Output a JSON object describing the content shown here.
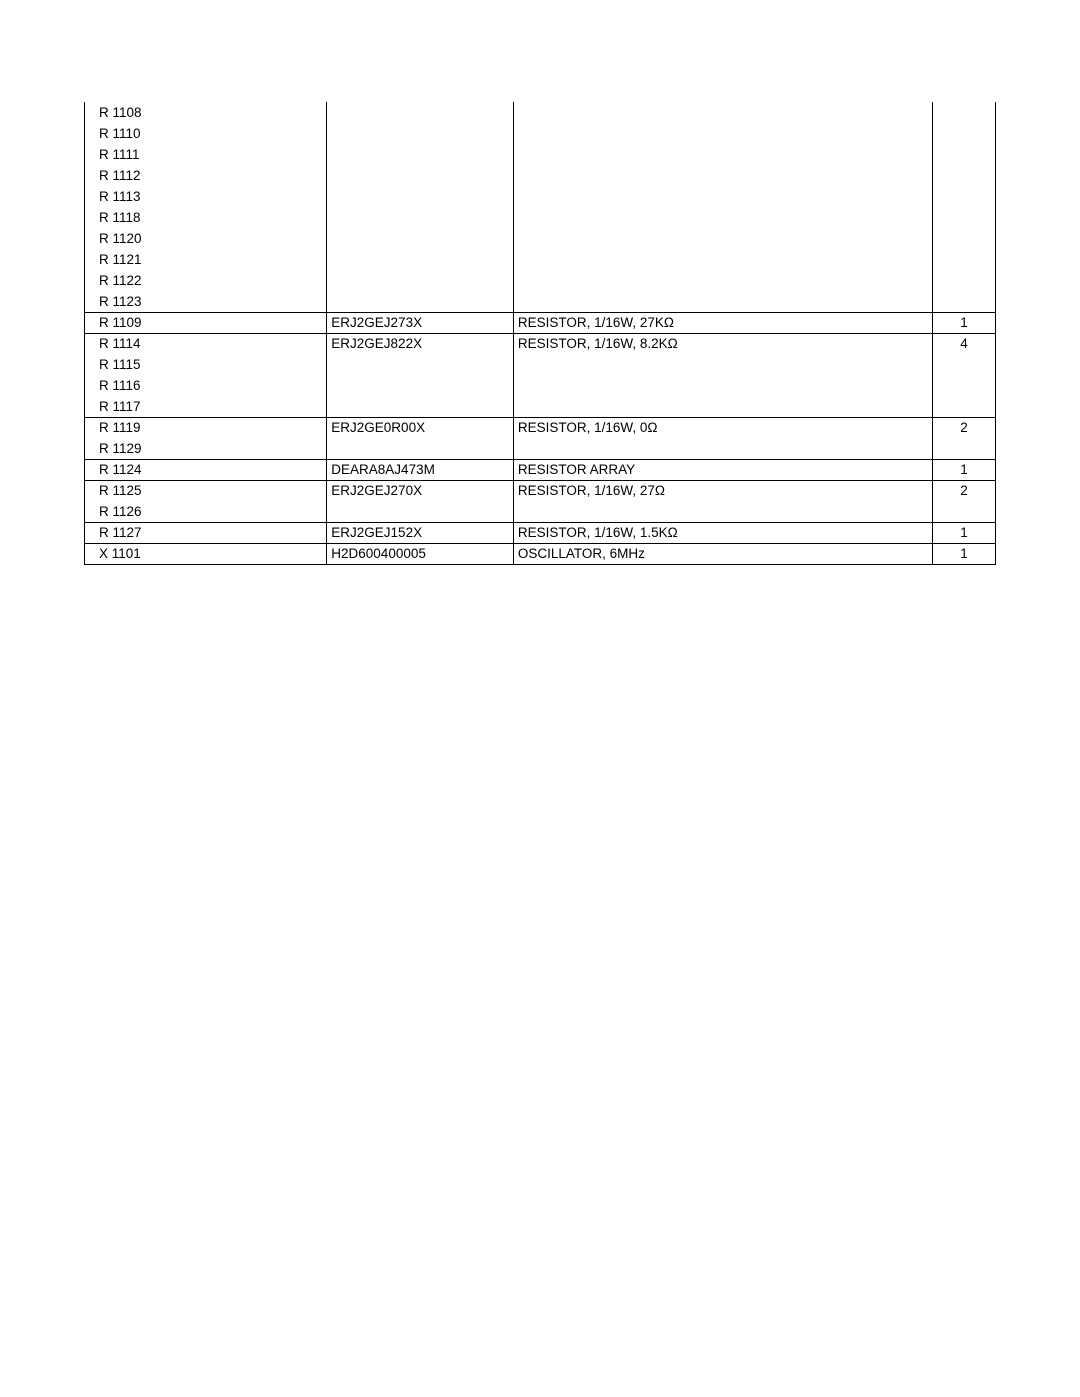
{
  "rows": [
    {
      "ref": "R 1108",
      "part": "",
      "desc": "",
      "qty": "",
      "group_start": false
    },
    {
      "ref": "R 1110",
      "part": "",
      "desc": "",
      "qty": "",
      "group_start": false
    },
    {
      "ref": "R 1111",
      "part": "",
      "desc": "",
      "qty": "",
      "group_start": false
    },
    {
      "ref": "R 1112",
      "part": "",
      "desc": "",
      "qty": "",
      "group_start": false
    },
    {
      "ref": "R 1113",
      "part": "",
      "desc": "",
      "qty": "",
      "group_start": false
    },
    {
      "ref": "R 1118",
      "part": "",
      "desc": "",
      "qty": "",
      "group_start": false
    },
    {
      "ref": "R 1120",
      "part": "",
      "desc": "",
      "qty": "",
      "group_start": false
    },
    {
      "ref": "R 1121",
      "part": "",
      "desc": "",
      "qty": "",
      "group_start": false
    },
    {
      "ref": "R 1122",
      "part": "",
      "desc": "",
      "qty": "",
      "group_start": false
    },
    {
      "ref": "R 1123",
      "part": "",
      "desc": "",
      "qty": "",
      "group_start": false
    },
    {
      "ref": "R 1109",
      "part": "ERJ2GEJ273X",
      "desc": "RESISTOR, 1/16W, 27KΩ",
      "qty": "1",
      "group_start": true
    },
    {
      "ref": "R 1114",
      "part": "ERJ2GEJ822X",
      "desc": "RESISTOR, 1/16W, 8.2KΩ",
      "qty": "4",
      "group_start": true
    },
    {
      "ref": "R 1115",
      "part": "",
      "desc": "",
      "qty": "",
      "group_start": false
    },
    {
      "ref": "R 1116",
      "part": "",
      "desc": "",
      "qty": "",
      "group_start": false
    },
    {
      "ref": "R 1117",
      "part": "",
      "desc": "",
      "qty": "",
      "group_start": false
    },
    {
      "ref": "R 1119",
      "part": "ERJ2GE0R00X",
      "desc": "RESISTOR, 1/16W, 0Ω",
      "qty": "2",
      "group_start": true
    },
    {
      "ref": "R 1129",
      "part": "",
      "desc": "",
      "qty": "",
      "group_start": false
    },
    {
      "ref": "R 1124",
      "part": "DEARA8AJ473M",
      "desc": "RESISTOR ARRAY",
      "qty": "1",
      "group_start": true
    },
    {
      "ref": "R 1125",
      "part": "ERJ2GEJ270X",
      "desc": "RESISTOR, 1/16W, 27Ω",
      "qty": "2",
      "group_start": true
    },
    {
      "ref": "R 1126",
      "part": "",
      "desc": "",
      "qty": "",
      "group_start": false
    },
    {
      "ref": "R 1127",
      "part": "ERJ2GEJ152X",
      "desc": "RESISTOR, 1/16W, 1.5KΩ",
      "qty": "1",
      "group_start": true
    },
    {
      "ref": "X 1101",
      "part": "H2D600400005",
      "desc": "OSCILLATOR, 6MHz",
      "qty": "1",
      "group_start": true
    }
  ]
}
